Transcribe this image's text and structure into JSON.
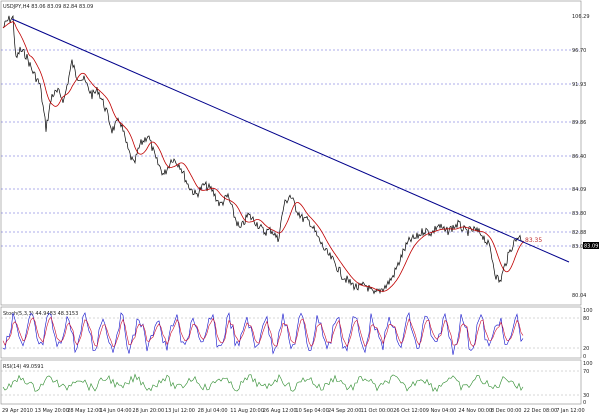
{
  "header": {
    "symbol_line": "USDJPY,H4 83.06 83.09 82.84 83.09"
  },
  "main_panel": {
    "type": "candlestick",
    "price_levels": [
      {
        "value": "106.29"
      },
      {
        "value": "96.70"
      },
      {
        "value": "91.93"
      },
      {
        "value": "89.86"
      },
      {
        "value": "86.40"
      },
      {
        "value": "84.09"
      },
      {
        "value": "83.80"
      },
      {
        "value": "82.88"
      },
      {
        "value": "83.09"
      },
      {
        "value": "80.04"
      }
    ],
    "current_price": "83.09",
    "trendline_annotation": "83.35",
    "colors": {
      "price": "#000000",
      "ma": "#c00000",
      "trendline": "#00008b",
      "level_lines": "#0000cc"
    }
  },
  "stoch_panel": {
    "label": "Stoch(5,3,3) 44.9483 48.3153",
    "scale": [
      "100",
      "80",
      "20",
      "0"
    ],
    "colors": {
      "main": "#1010cc",
      "signal": "#cc1030"
    }
  },
  "rsi_panel": {
    "label": "RSI(14) 49.0591",
    "scale": [
      "100",
      "70",
      "30",
      "0"
    ],
    "color": "#2a8a2a"
  },
  "x_axis": {
    "labels": [
      "29 Apr 2010",
      "13 May 20:00",
      "28 May 12:00",
      "14 Jun 04:00",
      "28 Jun 20:00",
      "13 Jul 12:00",
      "28 Jul 04:00",
      "11 Aug 20:00",
      "26 Aug 12:00",
      "10 Sep 04:00",
      "24 Sep 20:00",
      "11 Oct 00:00",
      "26 Oct 12:00",
      "9 Nov 04:00",
      "24 Nov 00:00",
      "8 Dec 00:00",
      "22 Dec 08:00",
      "7 Jan 12:00"
    ]
  }
}
